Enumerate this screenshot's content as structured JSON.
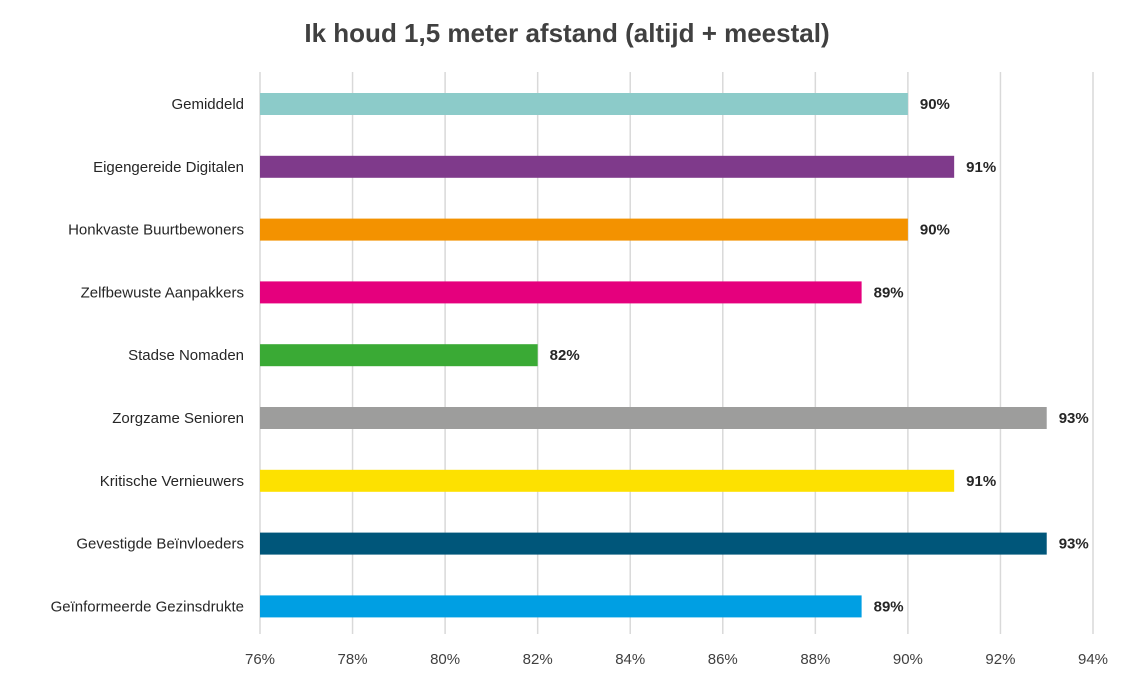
{
  "chart_data": {
    "type": "bar",
    "orientation": "horizontal",
    "title": "Ik houd 1,5 meter afstand (altijd + meestal)",
    "xlabel": "",
    "ylabel": "",
    "xlim": [
      76,
      94
    ],
    "tick_step": 2,
    "tick_labels": [
      "76%",
      "78%",
      "80%",
      "82%",
      "84%",
      "86%",
      "88%",
      "90%",
      "92%",
      "94%"
    ],
    "grid": true,
    "legend": "none",
    "categories": [
      "Gemiddeld",
      "Eigengereide Digitalen",
      "Honkvaste Buurtbewoners",
      "Zelfbewuste Aanpakkers",
      "Stadse Nomaden",
      "Zorgzame Senioren",
      "Kritische Vernieuwers",
      "Gevestigde Beïnvloeders",
      "Geïnformeerde Gezinsdrukte"
    ],
    "values": [
      90,
      91,
      90,
      89,
      82,
      93,
      91,
      93,
      89
    ],
    "value_labels": [
      "90%",
      "91%",
      "90%",
      "89%",
      "82%",
      "93%",
      "91%",
      "93%",
      "89%"
    ],
    "colors": [
      "#8ccbc9",
      "#7f3a8b",
      "#f39200",
      "#e5007d",
      "#3aaa35",
      "#9d9d9c",
      "#fde100",
      "#00567a",
      "#009fe3"
    ]
  }
}
